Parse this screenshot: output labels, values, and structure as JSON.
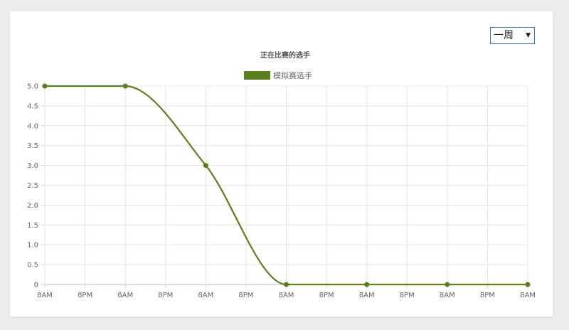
{
  "controls": {
    "range_value": "一周",
    "caret": "▼"
  },
  "chart_data": {
    "type": "line",
    "title": "正在比赛的选手",
    "series": [
      {
        "name": "模拟赛选手",
        "color": "#5a7f1e",
        "values": [
          5,
          null,
          5,
          null,
          3,
          null,
          0,
          null,
          0,
          null,
          0,
          null,
          0
        ]
      }
    ],
    "categories": [
      "8AM",
      "8PM",
      "8AM",
      "8PM",
      "8AM",
      "8PM",
      "8AM",
      "8PM",
      "8AM",
      "8PM",
      "8AM",
      "8PM",
      "8AM"
    ],
    "yticks": [
      "0",
      "0.5",
      "1.0",
      "1.5",
      "2.0",
      "2.5",
      "3.0",
      "3.5",
      "4.0",
      "4.5",
      "5.0"
    ],
    "ylim": [
      0,
      5
    ],
    "grid": true,
    "legend": "top"
  }
}
